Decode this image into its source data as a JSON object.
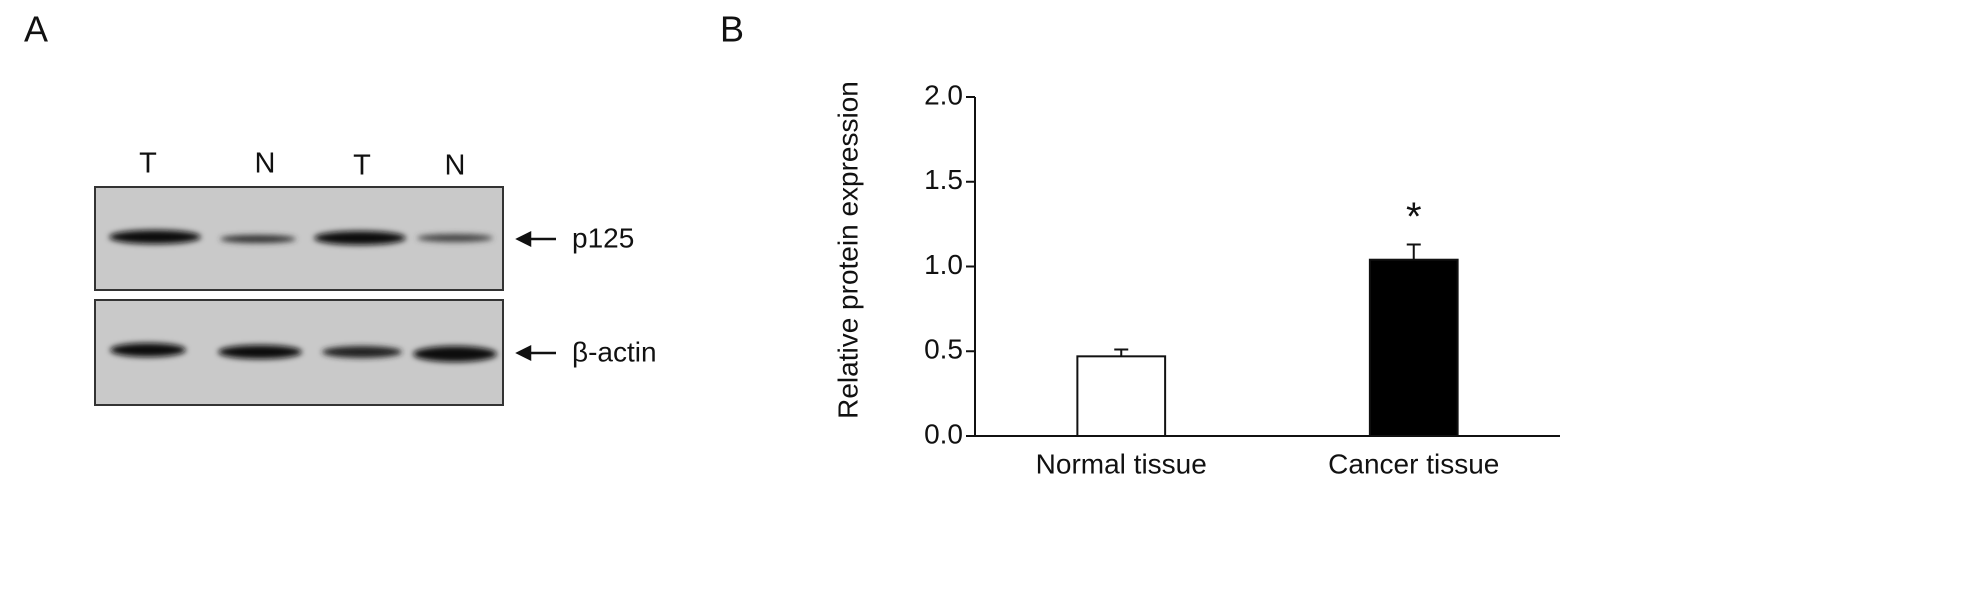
{
  "panel_a": {
    "label": "A",
    "lanes": [
      "T",
      "N",
      "T",
      "N"
    ],
    "blots": [
      "p125",
      "β-actin"
    ]
  },
  "chart_data": {
    "type": "bar",
    "panel_label": "B",
    "y_label": "Relative protein expression",
    "categories": [
      "Normal tissue",
      "Cancer tissue"
    ],
    "values": [
      0.47,
      1.04
    ],
    "errors": [
      0.04,
      0.09
    ],
    "colors": [
      "#ffffff",
      "#000000"
    ],
    "ylim": [
      0,
      2.0
    ],
    "yticks": [
      {
        "value": 0,
        "label": "0.0"
      },
      {
        "value": 0.5,
        "label": "0.5"
      },
      {
        "value": 1.0,
        "label": "1.0"
      },
      {
        "value": 1.5,
        "label": "1.5"
      },
      {
        "value": 2.0,
        "label": "2.0"
      }
    ],
    "annotations": [
      {
        "category": "Cancer tissue",
        "text": "*"
      }
    ]
  }
}
